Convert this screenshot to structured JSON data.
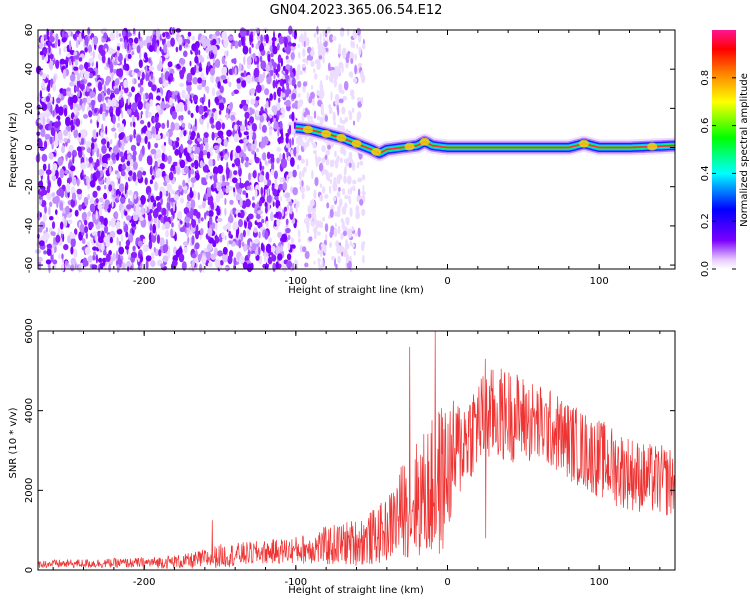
{
  "title": "GN04.2023.365.06.54.E12",
  "chart_data": [
    {
      "type": "heatmap",
      "xlabel": "Height of straight line (km)",
      "ylabel": "Frequency (Hz)",
      "xlim": [
        -270,
        150
      ],
      "ylim": [
        -62,
        60
      ],
      "xticks": [
        -200,
        -100,
        0,
        100
      ],
      "yticks": [
        -60,
        -40,
        -20,
        0,
        20,
        40,
        60
      ],
      "colorbar": {
        "label": "Normalized spectral amplitude",
        "range": [
          0,
          1
        ],
        "ticks": [
          0.0,
          0.2,
          0.4,
          0.6,
          0.8
        ],
        "tick_labels": [
          "0.0",
          "0.2",
          "0.4",
          "0.6",
          "0.8"
        ],
        "colormap": [
          "#ffffff",
          "#7a00ff",
          "#0000ff",
          "#00ffff",
          "#00ff00",
          "#ffff00",
          "#ff8000",
          "#ff0000",
          "#ff1493"
        ]
      },
      "noise_region_x": [
        -270,
        -100
      ],
      "ridge": {
        "x": [
          -100,
          -90,
          -80,
          -70,
          -60,
          -50,
          -45,
          -40,
          -30,
          -20,
          -15,
          -10,
          0,
          20,
          40,
          60,
          80,
          90,
          100,
          120,
          150
        ],
        "freq": [
          10,
          9,
          7,
          5,
          2,
          -1,
          -3,
          -1,
          0,
          1,
          3,
          1,
          0,
          0,
          0,
          0,
          0,
          2,
          0,
          0,
          1
        ]
      },
      "grid": false
    },
    {
      "type": "line",
      "xlabel": "Height of straight line (km)",
      "ylabel": "SNR (10 * v/v)",
      "xlim": [
        -270,
        150
      ],
      "ylim": [
        0,
        6000
      ],
      "xticks": [
        -200,
        -100,
        0,
        100
      ],
      "yticks": [
        0,
        2000,
        4000,
        6000
      ],
      "color": "#ee3333",
      "envelope": {
        "x": [
          -270,
          -200,
          -170,
          -150,
          -120,
          -100,
          -90,
          -80,
          -60,
          -50,
          -40,
          -30,
          -20,
          -10,
          -5,
          0,
          10,
          20,
          30,
          40,
          50,
          70,
          90,
          110,
          130,
          150
        ],
        "base": [
          150,
          180,
          220,
          350,
          450,
          500,
          550,
          600,
          700,
          800,
          1000,
          1500,
          1800,
          2000,
          2200,
          2500,
          3200,
          3700,
          3900,
          3900,
          3800,
          3500,
          3000,
          2600,
          2300,
          2200
        ],
        "spread": [
          100,
          130,
          200,
          300,
          300,
          350,
          400,
          500,
          600,
          700,
          800,
          1200,
          1500,
          1800,
          2000,
          1700,
          1200,
          1200,
          1200,
          1200,
          1100,
          1000,
          1000,
          1000,
          900,
          900
        ]
      },
      "spikes": [
        {
          "x": -155,
          "y": 1250
        },
        {
          "x": -25,
          "y": 5600
        },
        {
          "x": -8,
          "y": 6000
        },
        {
          "x": 25,
          "y": 5300
        }
      ],
      "grid": false
    }
  ]
}
